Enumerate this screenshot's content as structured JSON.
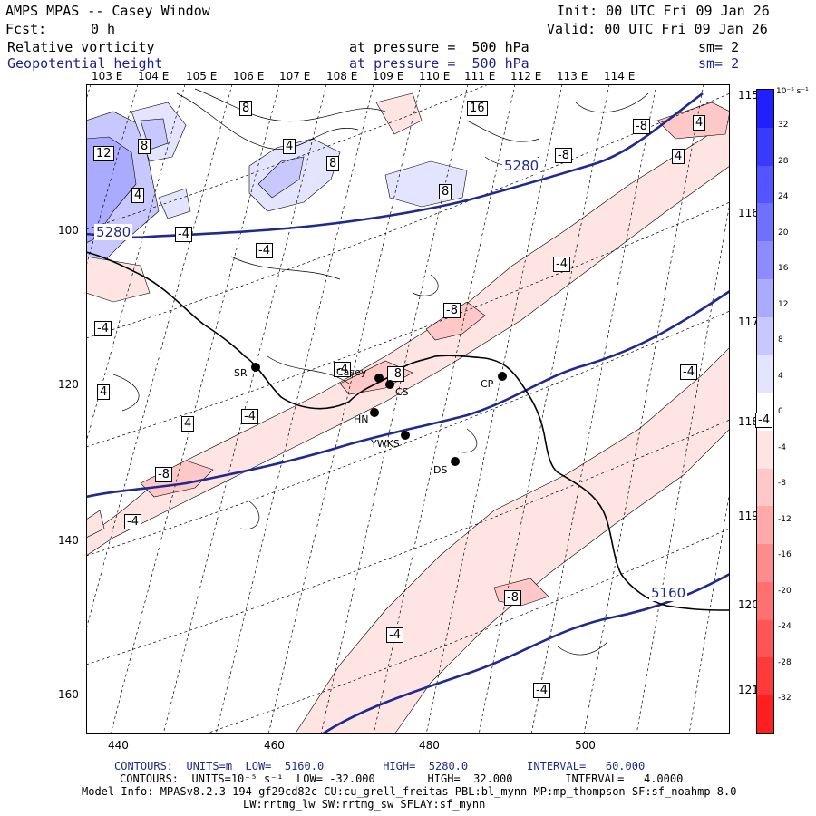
{
  "header": {
    "model": "AMPS MPAS -- Casey Window",
    "init": "Init: 00 UTC Fri 09 Jan 26",
    "fcst_label": "Fcst:",
    "fcst_value": "0 h",
    "valid": "Valid: 00 UTC Fri 09 Jan 26",
    "field1_name": "Relative vorticity",
    "field1_level": "at pressure =  500 hPa",
    "field1_sm": "sm= 2",
    "field2_name": "Geopotential height",
    "field2_level": "at pressure =  500 hPa",
    "field2_sm": "sm= 2"
  },
  "axes": {
    "top_longitudes": [
      "103 E",
      "104 E",
      "105 E",
      "106 E",
      "107 E",
      "108 E",
      "109 E",
      "110 E",
      "111 E",
      "112 E",
      "113 E",
      "114 E"
    ],
    "right_longitudes": [
      "115 E",
      "116 E",
      "117 E",
      "118 E",
      "119 E",
      "120 E",
      "121 E"
    ],
    "x_ticks": [
      "440",
      "460",
      "480",
      "500"
    ],
    "y_ticks": [
      "100",
      "120",
      "140",
      "160"
    ]
  },
  "colorbar": {
    "unit": "10⁻⁵ s⁻¹",
    "labels": [
      "32",
      "28",
      "24",
      "20",
      "16",
      "12",
      "8",
      "4",
      "0",
      "-4",
      "-8",
      "-12",
      "-16",
      "-20",
      "-24",
      "-28",
      "-32"
    ],
    "colors": [
      "#1f1fff",
      "#3a3aff",
      "#5555ff",
      "#7070ff",
      "#8c8cff",
      "#aaaaff",
      "#c8c8ff",
      "#e4e4ff",
      "#ffffff",
      "#ffe4e4",
      "#ffc8c8",
      "#ffaaaa",
      "#ff8c8c",
      "#ff7070",
      "#ff5555",
      "#ff3a3a",
      "#ff1f1f"
    ]
  },
  "contour_labels": {
    "vorticity": [
      "8",
      "16",
      "12",
      "8",
      "4",
      "8",
      "4",
      "8",
      "4",
      "-8",
      "4",
      "-4",
      "-4",
      "-4",
      "-8",
      "-4",
      "4",
      "-4",
      "-8",
      "-4",
      "4",
      "-4",
      "-8",
      "-4",
      "-8",
      "-4",
      "-4",
      "-4",
      "-8"
    ],
    "height": [
      "5280",
      "5280",
      "5160"
    ]
  },
  "stations": [
    "SR",
    "Casey",
    "CS",
    "CP",
    "HN",
    "YWKS",
    "DS"
  ],
  "footer": {
    "line1": "CONTOURS:  UNITS=m  LOW=  5160.0         HIGH=  5280.0         INTERVAL=   60.000",
    "line2": "CONTOURS:  UNITS=10⁻⁵ s⁻¹  LOW= -32.000        HIGH=  32.000        INTERVAL=   4.0000",
    "line3": "Model Info: MPASv8.2.3-194-gf29cd82c CU:cu_grell_freitas PBL:bl_mynn MP:mp_thompson SF:sf_noahmp 8.0",
    "line4": "LW:rrtmg_lw SW:rrtmg_sw SFLAY:sf_mynn"
  }
}
